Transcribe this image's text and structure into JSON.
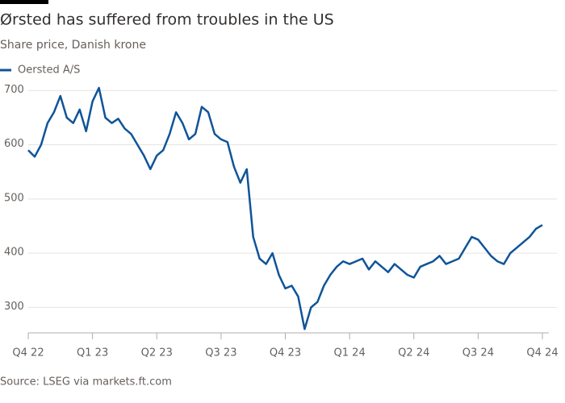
{
  "chart_data": {
    "type": "line",
    "title": "Ørsted has suffered from troubles in the US",
    "subtitle": "Share price, Danish krone",
    "source": "Source: LSEG via markets.ft.com",
    "categories": [
      "Q4 22",
      null,
      null,
      null,
      null,
      null,
      null,
      null,
      null,
      null,
      "Q1 23",
      null,
      null,
      null,
      null,
      null,
      null,
      null,
      null,
      null,
      "Q2 23",
      null,
      null,
      null,
      null,
      null,
      null,
      null,
      null,
      null,
      "Q3 23",
      null,
      null,
      null,
      null,
      null,
      null,
      null,
      null,
      null,
      "Q4 23",
      null,
      null,
      null,
      null,
      null,
      null,
      null,
      null,
      null,
      "Q1 24",
      null,
      null,
      null,
      null,
      null,
      null,
      null,
      null,
      null,
      "Q2 24",
      null,
      null,
      null,
      null,
      null,
      null,
      null,
      null,
      null,
      "Q3 24",
      null,
      null,
      null,
      null,
      null,
      null,
      null,
      null,
      null,
      "Q4 24"
    ],
    "series": [
      {
        "name": "Oersted A/S",
        "color": "#0f5499",
        "values": [
          590,
          578,
          600,
          640,
          660,
          690,
          650,
          640,
          665,
          625,
          680,
          705,
          650,
          640,
          648,
          630,
          620,
          600,
          580,
          555,
          580,
          590,
          620,
          660,
          640,
          610,
          620,
          670,
          660,
          620,
          610,
          605,
          560,
          530,
          555,
          430,
          390,
          380,
          400,
          360,
          335,
          340,
          320,
          260,
          300,
          310,
          340,
          360,
          375,
          385,
          380,
          385,
          390,
          370,
          385,
          375,
          365,
          380,
          370,
          360,
          355,
          375,
          380,
          385,
          395,
          380,
          385,
          390,
          410,
          430,
          425,
          410,
          395,
          385,
          380,
          400,
          410,
          420,
          430,
          445,
          452
        ]
      }
    ],
    "ylim": [
      253,
      705
    ],
    "yticks": [
      300,
      400,
      500,
      600,
      700
    ],
    "grid": true
  }
}
